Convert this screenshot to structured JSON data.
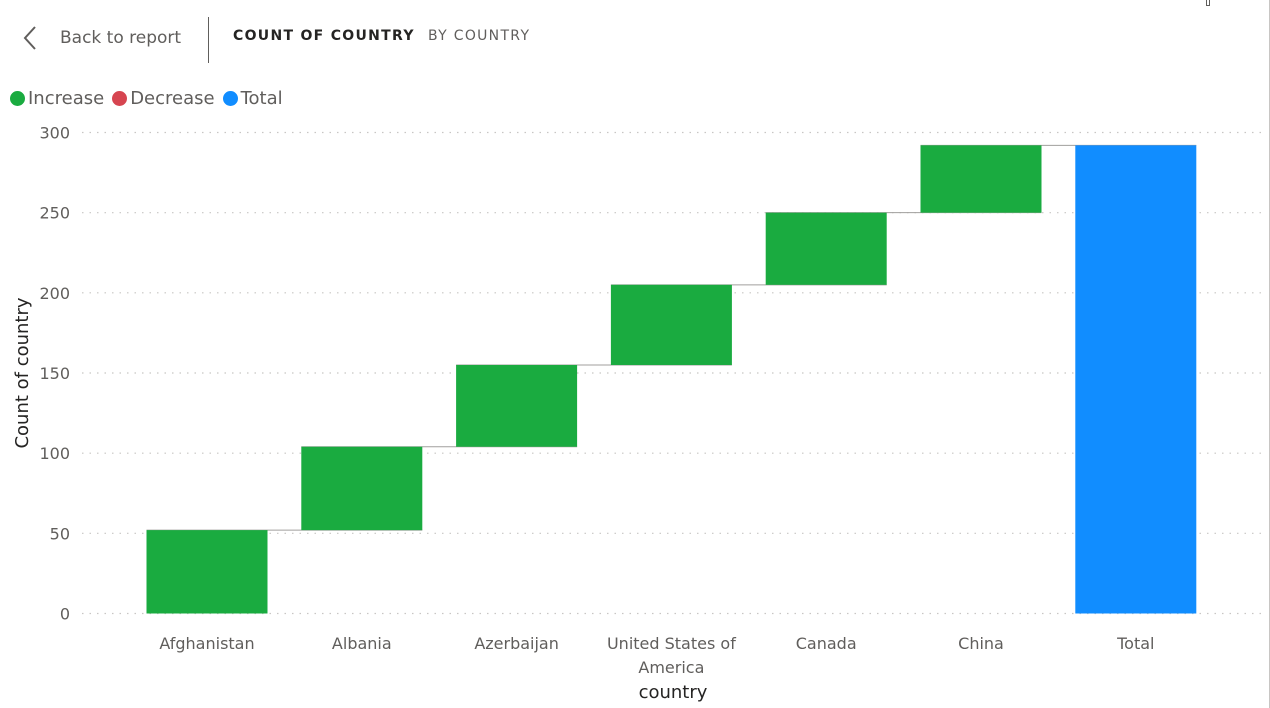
{
  "header": {
    "back_label": "Back to report",
    "measure_tab": "COUNT OF COUNTRY",
    "dimension_tab": "BY COUNTRY"
  },
  "legend": {
    "items": [
      {
        "label": "Increase",
        "color": "#1aab40"
      },
      {
        "label": "Decrease",
        "color": "#d64550"
      },
      {
        "label": "Total",
        "color": "#118dff"
      }
    ]
  },
  "chart_data": {
    "type": "waterfall",
    "xlabel": "country",
    "ylabel": "Count of country",
    "ylim": [
      0,
      300
    ],
    "yticks": [
      0,
      50,
      100,
      150,
      200,
      250,
      300
    ],
    "grid": true,
    "legend_position": "top-left",
    "categories": [
      "Afghanistan",
      "Albania",
      "Azerbaijan",
      "United States of America",
      "Canada",
      "China"
    ],
    "category_label_lines": [
      [
        "Afghanistan"
      ],
      [
        "Albania"
      ],
      [
        "Azerbaijan"
      ],
      [
        "United States of",
        "America"
      ],
      [
        "Canada"
      ],
      [
        "China"
      ]
    ],
    "values": [
      52,
      52,
      51,
      50,
      45,
      42
    ],
    "total_label": "Total",
    "total": 292,
    "colors": {
      "increase": "#1aab40",
      "decrease": "#d64550",
      "total": "#118dff"
    }
  }
}
